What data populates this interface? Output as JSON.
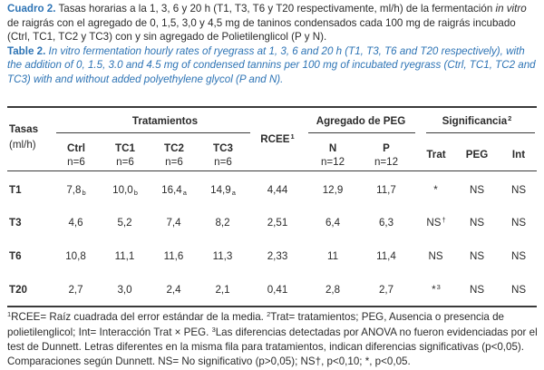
{
  "caption": {
    "es_label": "Cuadro 2.",
    "es_text_1": "Tasas horarias a la 1, 3, 6 y 20 h (T1, T3, T6 y T20 respectivamente, ml/h) de la fermentación ",
    "es_italic": "in vitro",
    "es_text_2": " de raigrás con el agregado de 0, 1,5, 3,0 y 4,5 mg de taninos condensados cada 100 mg de raigrás incubado (Ctrl, TC1, TC2 y TC3) con y sin agregado de Polietilenglicol (P y N).",
    "en_label": "Table 2.",
    "en_text": "In vitro fermentation hourly rates of ryegrass at 1, 3, 6 and 20 h (T1, T3, T6 and T20 respectively), with the addition of 0, 1.5, 3.0 and 4.5 mg of condensed tannins per 100 mg of incubated ryegrass (Ctrl, TC1, TC2 and TC3) with and without added polyethylene glycol (P and N)."
  },
  "header": {
    "tasas": "Tasas",
    "unit": "(ml/h)",
    "tratamientos": "Tratamientos",
    "rcee": "RCEE",
    "rcee_sup": "1",
    "peg_group": "Agregado de PEG",
    "signif": "Significancia",
    "signif_sup": "2",
    "cols": [
      {
        "label": "Ctrl",
        "n": "n=6"
      },
      {
        "label": "TC1",
        "n": "n=6"
      },
      {
        "label": "TC2",
        "n": "n=6"
      },
      {
        "label": "TC3",
        "n": "n=6"
      }
    ],
    "peg_cols": [
      {
        "label": "N",
        "n": "n=12"
      },
      {
        "label": "P",
        "n": "n=12"
      }
    ],
    "sig_cols": [
      "Trat",
      "PEG",
      "Int"
    ]
  },
  "rows": [
    {
      "label": "T1",
      "ctrl": "7,8",
      "ctrl_l": "b",
      "tc1": "10,0",
      "tc1_l": "b",
      "tc2": "16,4",
      "tc2_l": "a",
      "tc3": "14,9",
      "tc3_l": "a",
      "rcee": "4,44",
      "n": "12,9",
      "p": "11,7",
      "trat": "*",
      "trat_sup": "",
      "peg": "NS",
      "int": "NS"
    },
    {
      "label": "T3",
      "ctrl": "4,6",
      "ctrl_l": "",
      "tc1": "5,2",
      "tc1_l": "",
      "tc2": "7,4",
      "tc2_l": "",
      "tc3": "8,2",
      "tc3_l": "",
      "rcee": "2,51",
      "n": "6,4",
      "p": "6,3",
      "trat": "NS",
      "trat_sup": "†",
      "peg": "NS",
      "int": "NS"
    },
    {
      "label": "T6",
      "ctrl": "10,8",
      "ctrl_l": "",
      "tc1": "11,1",
      "tc1_l": "",
      "tc2": "11,6",
      "tc2_l": "",
      "tc3": "11,3",
      "tc3_l": "",
      "rcee": "2,33",
      "n": "11",
      "p": "11,4",
      "trat": "NS",
      "trat_sup": "",
      "peg": "NS",
      "int": "NS"
    },
    {
      "label": "T20",
      "ctrl": "2,7",
      "ctrl_l": "",
      "tc1": "3,0",
      "tc1_l": "",
      "tc2": "2,4",
      "tc2_l": "",
      "tc3": "2,1",
      "tc3_l": "",
      "rcee": "0,41",
      "n": "2,8",
      "p": "2,7",
      "trat": "*",
      "trat_sup": "3",
      "peg": "NS",
      "int": "NS"
    }
  ],
  "footnote": {
    "s1": "1",
    "t1": "RCEE= Raíz cuadrada del error estándar de la media. ",
    "s2": "2",
    "t2": "Trat= tratamientos; PEG, Ausencia o presencia de polietilenglicol; Int= Interacción Trat × PEG. ",
    "s3": "3",
    "t3": "Las diferencias detectadas por ANOVA no fueron evidenciadas por el test de Dunnett. Letras diferentes en la misma fila para tratamientos, indican diferencias significativas (p<0,05). Comparaciones según Dunnett. NS= No significativo (p>0,05); NS†, p<0,10; *, p<0,05."
  }
}
